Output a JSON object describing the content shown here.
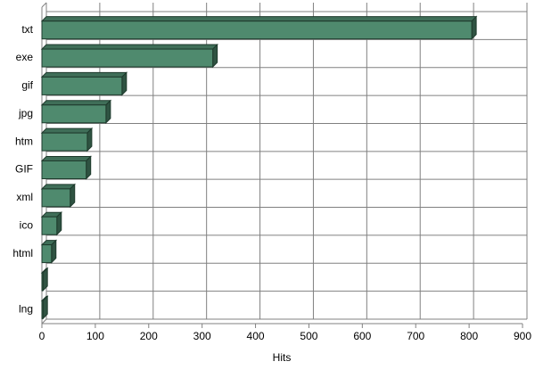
{
  "chart_data": {
    "type": "bar",
    "orientation": "horizontal",
    "categories": [
      "txt",
      "exe",
      "gif",
      "jpg",
      "htm",
      "GIF",
      "xml",
      "ico",
      "html",
      null,
      "lng"
    ],
    "values": [
      805,
      320,
      150,
      120,
      85,
      83,
      53,
      28,
      18,
      2,
      2
    ],
    "color": "#4f8a6e",
    "xlim": [
      0,
      900
    ],
    "xticks": [
      0,
      100,
      200,
      300,
      400,
      500,
      600,
      700,
      800,
      900
    ],
    "xlabel": "Hits",
    "grid": true
  }
}
